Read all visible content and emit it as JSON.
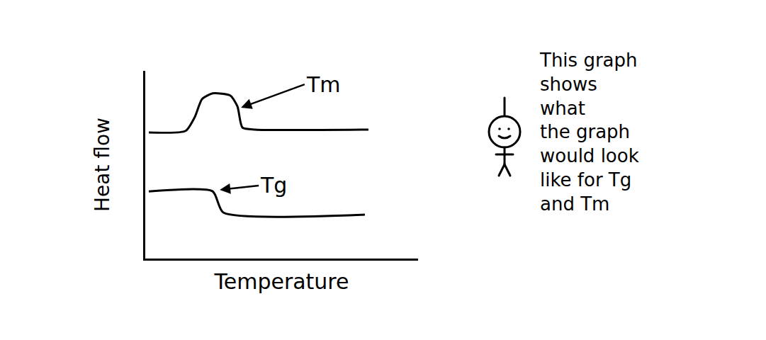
{
  "chart_data": {
    "type": "line",
    "x_label": "Temperature",
    "y_label": "Heat flow",
    "series": [
      {
        "x": [
          1.3,
          14.8,
          18.2,
          20.8,
          24.7,
          31.2,
          33.8,
          35.6,
          40.3,
          81.8
        ],
        "values": [
          67.2,
          68.0,
          75.5,
          84.9,
          88.0,
          86.8,
          81.0,
          69.8,
          68.7,
          68.7
        ],
        "color": "#000000"
      },
      {
        "x": [
          1.3,
          24.7,
          28.6,
          80.5
        ],
        "values": [
          35.8,
          35.8,
          24.5,
          23.4
        ],
        "color": "#000000"
      }
    ],
    "annotations": [
      {
        "text": "Tm",
        "x": 35.1,
        "y": 80.4,
        "text_x": 58.4,
        "text_y": 92.8
      },
      {
        "text": "Tg",
        "x": 27.3,
        "y": 36.6,
        "text_x": 41.6,
        "text_y": 38.9
      }
    ],
    "note": [
      "This graph",
      "shows",
      "what",
      "the graph",
      "would look",
      "like for Tg",
      "and Tm"
    ],
    "xlim": [
      0,
      100
    ],
    "ylim": [
      0,
      100
    ],
    "xticks": [],
    "yticks": [],
    "tick_labels": false,
    "grid": false
  }
}
